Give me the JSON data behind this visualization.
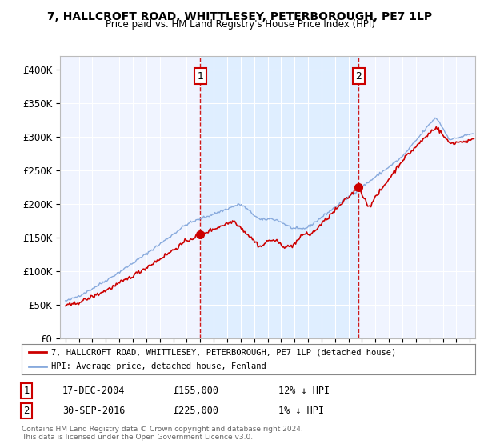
{
  "title": "7, HALLCROFT ROAD, WHITTLESEY, PETERBOROUGH, PE7 1LP",
  "subtitle": "Price paid vs. HM Land Registry's House Price Index (HPI)",
  "red_line_label": "7, HALLCROFT ROAD, WHITTLESEY, PETERBOROUGH, PE7 1LP (detached house)",
  "blue_line_label": "HPI: Average price, detached house, Fenland",
  "transaction1_date": "17-DEC-2004",
  "transaction1_price": "£155,000",
  "transaction1_hpi": "12% ↓ HPI",
  "transaction1_year": 2005.0,
  "transaction1_value": 155000,
  "transaction2_date": "30-SEP-2016",
  "transaction2_price": "£225,000",
  "transaction2_hpi": "1% ↓ HPI",
  "transaction2_year": 2016.75,
  "transaction2_value": 225000,
  "footer": "Contains HM Land Registry data © Crown copyright and database right 2024.\nThis data is licensed under the Open Government Licence v3.0.",
  "ylim": [
    0,
    420000
  ],
  "xlim_start": 1994.6,
  "xlim_end": 2025.4,
  "red_color": "#cc0000",
  "blue_color": "#88aadd",
  "shade_color": "#ddeeff",
  "background_chart": "#f0f4ff",
  "background_fig": "#ffffff",
  "grid_color": "#ffffff",
  "transaction_marker_color": "#cc0000",
  "ytick_labels": [
    "£0",
    "£50K",
    "£100K",
    "£150K",
    "£200K",
    "£250K",
    "£300K",
    "£350K",
    "£400K"
  ],
  "ytick_values": [
    0,
    50000,
    100000,
    150000,
    200000,
    250000,
    300000,
    350000,
    400000
  ]
}
